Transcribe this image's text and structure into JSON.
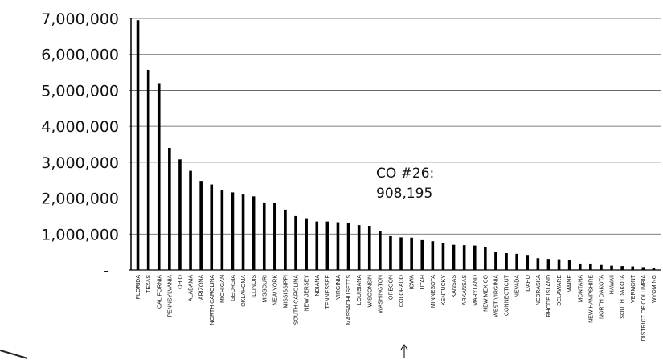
{
  "chart_data": {
    "type": "bar",
    "title": "",
    "xlabel": "",
    "ylabel": "",
    "ylim": [
      0,
      7000000
    ],
    "y_ticks": [
      "7,000,000",
      "6,000,000",
      "5,000,000",
      "4,000,000",
      "3,000,000",
      "2,000,000",
      "1,000,000",
      "-"
    ],
    "grid": true,
    "color": "#000000",
    "categories": [
      "FLORIDA",
      "TEXAS",
      "CALIFORNIA",
      "PENNSYLVANIA",
      "OHIO",
      "ALABAMA",
      "ARIZONA",
      "NORTH CAROLINA",
      "MICHIGAN",
      "GEORGIA",
      "OKLAHOMA",
      "ILLINOIS",
      "MISSOURI",
      "NEW YORK",
      "MISSISSIPPI",
      "SOUTH CAROLINA",
      "NEW JERSEY",
      "INDIANA",
      "TENNESSEE",
      "VIRGINIA",
      "MASSACHUSETTS",
      "LOUISIANA",
      "WISCONSIN",
      "WASHINGTON",
      "OREGON",
      "COLORADO",
      "IOWA",
      "UTAH",
      "MINNESOTA",
      "KENTUCKY",
      "KANSAS",
      "ARKANSAS",
      "MARYLAND",
      "NEW MEXICO",
      "WEST VIRGINIA",
      "CONNECTICUT",
      "NEVADA",
      "IDAHO",
      "NEBRASKA",
      "RHODE ISLAND",
      "DELAWARE",
      "MAINE",
      "MONTANA",
      "NEW HAMPSHIRE",
      "NORTH DAKOTA",
      "HAWAII",
      "SOUTH DAKOTA",
      "VERMONT",
      "DISTRICT OF COLUMBIA",
      "WYOMING"
    ],
    "values": [
      6950000,
      5570000,
      5200000,
      3400000,
      3080000,
      2760000,
      2480000,
      2380000,
      2230000,
      2160000,
      2100000,
      2050000,
      1880000,
      1860000,
      1680000,
      1500000,
      1440000,
      1350000,
      1350000,
      1330000,
      1320000,
      1250000,
      1230000,
      1090000,
      940000,
      908195,
      900000,
      830000,
      800000,
      740000,
      700000,
      690000,
      680000,
      640000,
      500000,
      470000,
      450000,
      420000,
      330000,
      310000,
      300000,
      270000,
      180000,
      180000,
      140000,
      120000,
      110000,
      100000,
      80000,
      60000
    ],
    "annotations": [
      {
        "line1": "CO #26:",
        "line2": "908,195"
      }
    ]
  }
}
